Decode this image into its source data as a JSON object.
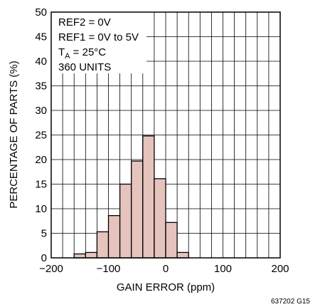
{
  "chart_data": {
    "type": "bar",
    "title": "",
    "xlabel": "GAIN ERROR (ppm)",
    "ylabel": "PERCENTAGE OF PARTS (%)",
    "xlim": [
      -200,
      200
    ],
    "ylim": [
      0,
      50
    ],
    "x_ticks": [
      "−200",
      "−100",
      "0",
      "100",
      "200"
    ],
    "y_ticks": [
      "0",
      "5",
      "10",
      "15",
      "20",
      "25",
      "30",
      "35",
      "40",
      "45",
      "50"
    ],
    "grid": true,
    "bin_width": 20,
    "bins": [
      {
        "start": -160,
        "end": -140,
        "value": 0.8
      },
      {
        "start": -140,
        "end": -120,
        "value": 1.1
      },
      {
        "start": -120,
        "end": -100,
        "value": 5.3
      },
      {
        "start": -100,
        "end": -80,
        "value": 8.6
      },
      {
        "start": -80,
        "end": -60,
        "value": 15.0
      },
      {
        "start": -60,
        "end": -40,
        "value": 19.7
      },
      {
        "start": -40,
        "end": -20,
        "value": 24.8
      },
      {
        "start": -20,
        "end": 0,
        "value": 16.1
      },
      {
        "start": 0,
        "end": 20,
        "value": 7.2
      },
      {
        "start": 20,
        "end": 40,
        "value": 1.1
      }
    ],
    "bar_color": "#e6c3bd",
    "annotations": {
      "ref2": "REF2 = 0V",
      "ref1": "REF1 = 0V to 5V",
      "temp_main": "T",
      "temp_sub": "A",
      "temp_rest": " = 25°C",
      "units": "360 UNITS"
    },
    "figure_code": "637202 G15"
  }
}
